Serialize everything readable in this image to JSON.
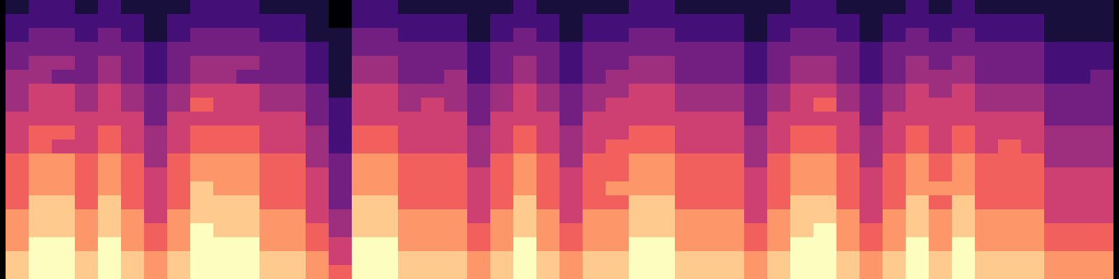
{
  "chart_data": {
    "type": "heatmap",
    "color": "magma",
    "tick_labels": false,
    "color_range": [
      0,
      9
    ],
    "cells": [
      [
        1,
        2,
        2,
        1,
        2,
        1,
        1,
        1,
        2,
        2,
        2,
        1,
        1,
        1,
        0,
        2,
        2,
        1,
        1,
        1,
        1,
        1,
        2,
        1,
        1,
        1,
        1,
        2,
        2,
        1,
        1,
        1,
        1,
        1,
        2,
        2,
        1,
        1,
        1,
        2,
        1,
        2,
        1,
        1,
        1,
        1,
        1,
        1
      ],
      [
        2,
        2,
        2,
        2,
        2,
        2,
        1,
        2,
        2,
        2,
        2,
        2,
        2,
        1,
        0,
        2,
        2,
        2,
        2,
        2,
        1,
        2,
        2,
        2,
        1,
        2,
        2,
        2,
        2,
        2,
        2,
        2,
        1,
        2,
        2,
        2,
        2,
        1,
        2,
        2,
        2,
        2,
        2,
        2,
        2,
        1,
        1,
        1
      ],
      [
        2,
        3,
        3,
        2,
        3,
        2,
        1,
        2,
        3,
        3,
        3,
        2,
        2,
        1,
        1,
        3,
        3,
        2,
        2,
        2,
        1,
        2,
        3,
        2,
        1,
        2,
        2,
        3,
        3,
        2,
        2,
        2,
        1,
        2,
        3,
        3,
        2,
        1,
        2,
        3,
        2,
        3,
        2,
        2,
        2,
        1,
        1,
        1
      ],
      [
        3,
        3,
        3,
        3,
        3,
        3,
        2,
        3,
        3,
        3,
        3,
        3,
        3,
        2,
        1,
        3,
        3,
        3,
        3,
        3,
        2,
        3,
        3,
        3,
        2,
        3,
        3,
        3,
        3,
        3,
        3,
        3,
        2,
        3,
        3,
        3,
        3,
        2,
        3,
        3,
        3,
        3,
        3,
        3,
        3,
        2,
        2,
        2
      ],
      [
        3,
        4,
        4,
        3,
        4,
        3,
        2,
        3,
        4,
        4,
        4,
        3,
        3,
        2,
        1,
        4,
        4,
        3,
        3,
        3,
        2,
        3,
        4,
        3,
        2,
        3,
        3,
        4,
        4,
        3,
        3,
        3,
        2,
        3,
        4,
        4,
        3,
        2,
        3,
        4,
        3,
        4,
        3,
        3,
        3,
        2,
        2,
        2
      ],
      [
        4,
        4,
        3,
        3,
        4,
        3,
        2,
        3,
        4,
        4,
        3,
        3,
        3,
        2,
        1,
        4,
        4,
        3,
        3,
        4,
        2,
        3,
        4,
        3,
        2,
        3,
        4,
        4,
        4,
        3,
        3,
        3,
        2,
        3,
        4,
        4,
        3,
        2,
        3,
        4,
        4,
        4,
        3,
        3,
        3,
        2,
        2,
        3
      ],
      [
        4,
        5,
        5,
        4,
        5,
        4,
        3,
        4,
        5,
        5,
        5,
        4,
        4,
        3,
        1,
        5,
        5,
        4,
        4,
        4,
        3,
        4,
        5,
        4,
        3,
        4,
        4,
        5,
        5,
        4,
        4,
        4,
        3,
        4,
        5,
        5,
        4,
        3,
        4,
        5,
        4,
        5,
        4,
        4,
        4,
        3,
        3,
        3
      ],
      [
        4,
        5,
        5,
        4,
        5,
        4,
        3,
        4,
        6,
        5,
        5,
        4,
        4,
        3,
        2,
        5,
        5,
        4,
        5,
        4,
        3,
        4,
        5,
        4,
        3,
        4,
        5,
        5,
        5,
        4,
        4,
        4,
        3,
        4,
        5,
        6,
        4,
        3,
        4,
        5,
        5,
        5,
        4,
        4,
        4,
        3,
        3,
        3
      ],
      [
        5,
        5,
        5,
        5,
        5,
        5,
        3,
        5,
        5,
        5,
        5,
        5,
        5,
        3,
        2,
        5,
        5,
        5,
        5,
        5,
        3,
        5,
        5,
        5,
        3,
        5,
        5,
        5,
        5,
        5,
        5,
        5,
        3,
        5,
        5,
        5,
        5,
        3,
        5,
        5,
        5,
        5,
        5,
        5,
        5,
        3,
        3,
        3
      ],
      [
        5,
        6,
        6,
        5,
        6,
        5,
        4,
        5,
        6,
        6,
        6,
        5,
        5,
        4,
        2,
        6,
        6,
        5,
        5,
        5,
        4,
        5,
        6,
        5,
        4,
        5,
        5,
        6,
        6,
        5,
        5,
        5,
        4,
        5,
        6,
        6,
        5,
        4,
        5,
        6,
        5,
        6,
        5,
        5,
        5,
        4,
        4,
        4
      ],
      [
        5,
        6,
        5,
        5,
        6,
        5,
        4,
        5,
        6,
        6,
        6,
        5,
        5,
        4,
        2,
        6,
        6,
        5,
        5,
        5,
        4,
        5,
        6,
        5,
        4,
        5,
        6,
        6,
        6,
        5,
        5,
        5,
        4,
        5,
        6,
        6,
        5,
        4,
        5,
        6,
        5,
        6,
        5,
        6,
        5,
        4,
        4,
        4
      ],
      [
        6,
        7,
        7,
        6,
        7,
        6,
        4,
        6,
        7,
        7,
        7,
        6,
        6,
        4,
        3,
        7,
        7,
        6,
        6,
        6,
        4,
        6,
        7,
        6,
        4,
        6,
        6,
        7,
        7,
        6,
        6,
        6,
        4,
        6,
        7,
        7,
        6,
        4,
        6,
        7,
        6,
        7,
        6,
        6,
        6,
        4,
        4,
        4
      ],
      [
        6,
        7,
        7,
        6,
        7,
        6,
        5,
        6,
        7,
        7,
        7,
        6,
        6,
        5,
        3,
        7,
        7,
        6,
        6,
        6,
        5,
        6,
        7,
        6,
        5,
        6,
        6,
        7,
        7,
        6,
        6,
        6,
        5,
        6,
        7,
        7,
        6,
        5,
        6,
        7,
        6,
        7,
        6,
        6,
        6,
        5,
        5,
        5
      ],
      [
        6,
        7,
        7,
        6,
        7,
        6,
        5,
        6,
        8,
        7,
        7,
        6,
        6,
        5,
        3,
        7,
        7,
        6,
        6,
        6,
        5,
        6,
        7,
        6,
        5,
        6,
        7,
        7,
        7,
        6,
        6,
        6,
        5,
        6,
        7,
        7,
        6,
        5,
        6,
        7,
        7,
        7,
        6,
        6,
        6,
        5,
        5,
        5
      ],
      [
        6,
        8,
        8,
        6,
        8,
        6,
        5,
        6,
        8,
        8,
        8,
        6,
        6,
        5,
        3,
        8,
        8,
        6,
        6,
        6,
        5,
        6,
        8,
        6,
        5,
        6,
        6,
        8,
        8,
        6,
        6,
        6,
        5,
        6,
        8,
        8,
        6,
        5,
        6,
        8,
        6,
        8,
        6,
        6,
        6,
        5,
        5,
        5
      ],
      [
        7,
        8,
        8,
        7,
        8,
        7,
        5,
        7,
        8,
        8,
        8,
        7,
        7,
        5,
        4,
        8,
        8,
        7,
        7,
        7,
        5,
        7,
        8,
        7,
        5,
        7,
        7,
        8,
        8,
        7,
        7,
        7,
        5,
        7,
        8,
        8,
        7,
        5,
        7,
        8,
        7,
        8,
        7,
        7,
        7,
        5,
        5,
        5
      ],
      [
        7,
        8,
        8,
        7,
        8,
        7,
        6,
        7,
        9,
        8,
        8,
        7,
        7,
        6,
        4,
        8,
        8,
        7,
        7,
        7,
        6,
        7,
        8,
        7,
        6,
        7,
        7,
        8,
        8,
        7,
        7,
        7,
        6,
        7,
        8,
        9,
        7,
        6,
        7,
        8,
        7,
        8,
        7,
        7,
        7,
        6,
        6,
        6
      ],
      [
        7,
        9,
        9,
        7,
        9,
        7,
        6,
        7,
        9,
        9,
        9,
        7,
        7,
        6,
        5,
        9,
        9,
        7,
        7,
        7,
        6,
        7,
        9,
        7,
        6,
        7,
        7,
        9,
        9,
        7,
        7,
        7,
        6,
        7,
        9,
        9,
        7,
        6,
        7,
        9,
        7,
        9,
        7,
        7,
        7,
        6,
        6,
        6
      ],
      [
        8,
        9,
        9,
        8,
        9,
        8,
        7,
        8,
        9,
        9,
        9,
        8,
        8,
        7,
        5,
        9,
        9,
        8,
        8,
        8,
        7,
        8,
        9,
        8,
        7,
        8,
        8,
        9,
        9,
        8,
        8,
        8,
        7,
        8,
        9,
        9,
        8,
        7,
        8,
        9,
        8,
        9,
        8,
        8,
        8,
        7,
        7,
        7
      ],
      [
        8,
        9,
        9,
        8,
        9,
        8,
        7,
        8,
        9,
        9,
        9,
        8,
        8,
        7,
        6,
        9,
        9,
        8,
        8,
        8,
        7,
        8,
        9,
        8,
        7,
        8,
        8,
        9,
        9,
        8,
        8,
        8,
        7,
        8,
        9,
        9,
        8,
        7,
        8,
        9,
        8,
        9,
        8,
        8,
        8,
        7,
        7,
        7
      ]
    ]
  }
}
